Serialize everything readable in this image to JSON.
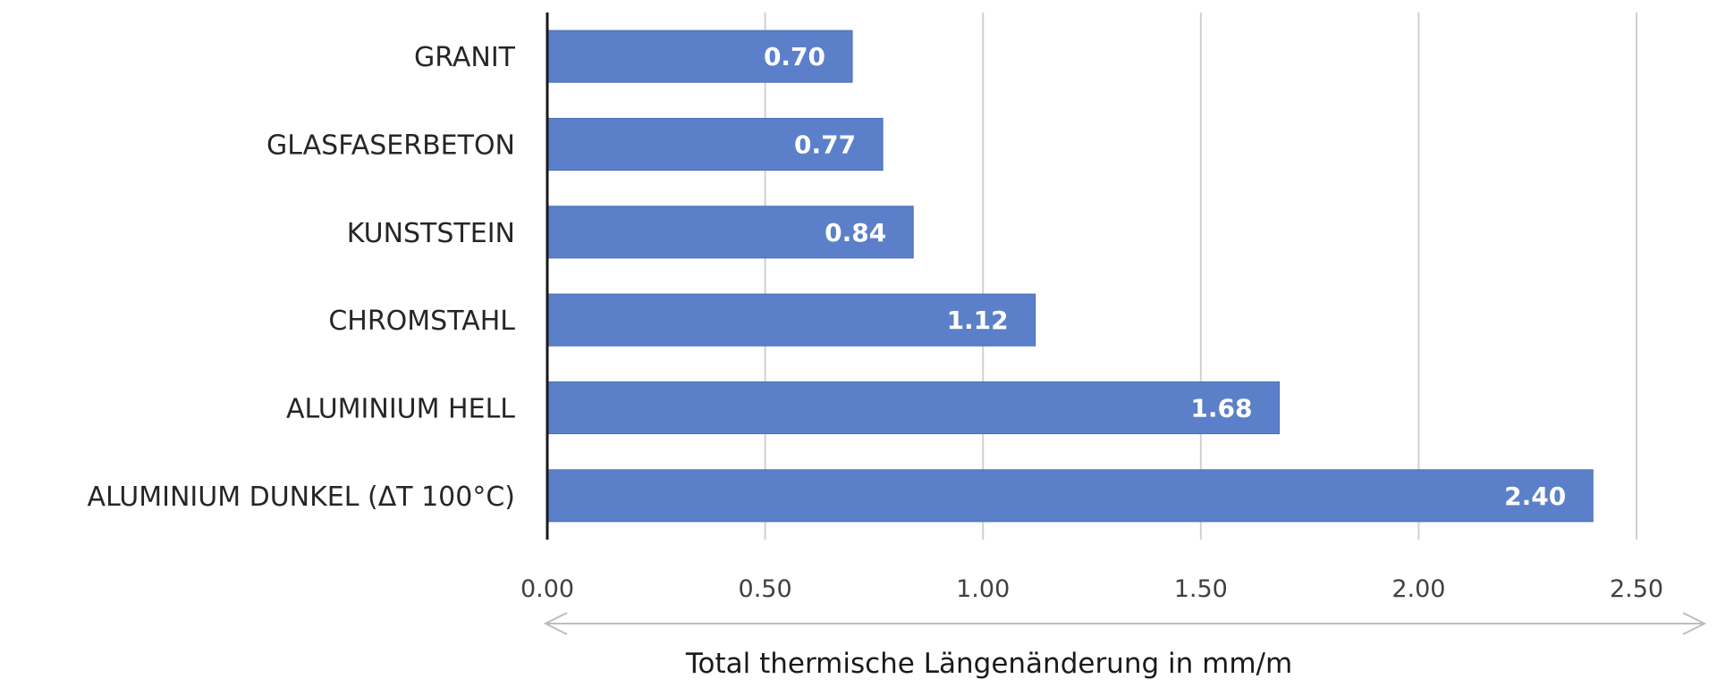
{
  "chart_data": {
    "type": "bar",
    "orientation": "horizontal",
    "categories": [
      "GRANIT",
      "GLASFASERBETON",
      "KUNSTSTEIN",
      "CHROMSTAHL",
      "ALUMINIUM HELL",
      "ALUMINIUM DUNKEL (ΔT 100°C)"
    ],
    "values": [
      0.7,
      0.77,
      0.84,
      1.12,
      1.68,
      2.4
    ],
    "value_labels": [
      "0.70",
      "0.77",
      "0.84",
      "1.12",
      "1.68",
      "2.40"
    ],
    "xlabel": "Total thermische Längenänderung in mm/m",
    "xlim": [
      0,
      2.5
    ],
    "xticks": [
      0,
      0.5,
      1.0,
      1.5,
      2.0,
      2.5
    ],
    "xtick_labels": [
      "0.00",
      "0.50",
      "1.00",
      "1.50",
      "2.00",
      "2.50"
    ],
    "grid": "vertical",
    "legend": "none",
    "colors": {
      "bar": "#5b80c9",
      "bar_edge": "#4a6fb8",
      "grid": "#d0d0d0",
      "axis": "#1a1a1a",
      "arrow": "#bdbdbd"
    }
  }
}
